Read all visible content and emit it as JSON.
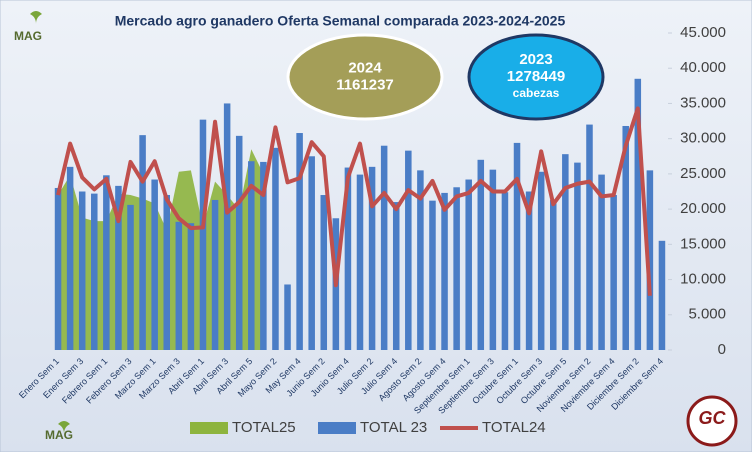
{
  "chart_data": {
    "type": "combo",
    "title": "Mercado agro ganadero Oferta Semanal comparada 2023-2024-2025",
    "categories": [
      "Enero Sem 1",
      null,
      "Enero Sem 3",
      null,
      "Febrero Sem 1",
      null,
      "Febrero Sem 3",
      null,
      "Marzo Sem 1",
      null,
      "Marzo Sem 3",
      null,
      "Abril Sem 1",
      null,
      "Abril Sem 3",
      null,
      "Abril Sem 5",
      null,
      "Mayo Sem 2",
      null,
      "May Sem 4",
      null,
      "Junio Sem 2",
      null,
      "Junio Sem 4",
      null,
      "Julio Sem 2",
      null,
      "Julio Sem 4",
      null,
      "Agosto Sem 2",
      null,
      "Agosto Sem 4",
      null,
      "Septiembre Sem 1",
      null,
      "Septiembre Sem 3",
      null,
      "Octubre Sem 1",
      null,
      "Octubre Sem 3",
      null,
      "Octubre Sem 5",
      null,
      "Noviembre Sem 2",
      null,
      "Noviembre Sem 4",
      null,
      "Diciembre Sem 2",
      null,
      "Diciembre Sem 4"
    ],
    "series": [
      {
        "name": "TOTAL25",
        "type": "area",
        "color": "#8db43e",
        "values": [
          22000,
          24800,
          18800,
          18300,
          18300,
          22200,
          22000,
          21500,
          20800,
          17000,
          25300,
          25500,
          17500,
          23900,
          22000,
          19900,
          28500,
          25000,
          null,
          null,
          null,
          null,
          null,
          null,
          null,
          null,
          null,
          null,
          null,
          null,
          null,
          null,
          null,
          null,
          null,
          null,
          null,
          null,
          null,
          null,
          null,
          null,
          null,
          null,
          null,
          null,
          null,
          null,
          null,
          null,
          null
        ]
      },
      {
        "name": "TOTAL 23",
        "type": "bar",
        "color": "#4a7dc6",
        "values": [
          23000,
          26000,
          22500,
          22200,
          24800,
          23300,
          20600,
          30500,
          24200,
          22000,
          18200,
          18000,
          32700,
          21300,
          35000,
          30400,
          26800,
          26700,
          28700,
          9300,
          30800,
          27500,
          22000,
          18700,
          25900,
          24900,
          26000,
          29000,
          21000,
          28300,
          25500,
          21200,
          22300,
          23100,
          24200,
          27000,
          25600,
          22400,
          29400,
          22500,
          25300,
          21300,
          27800,
          26600,
          32000,
          24900,
          22000,
          31800,
          38500,
          25500,
          15500
        ]
      },
      {
        "name": "TOTAL24",
        "type": "line",
        "color": "#c0504d",
        "values": [
          22000,
          29300,
          24500,
          22800,
          24300,
          18300,
          26700,
          23900,
          26800,
          21400,
          18700,
          17300,
          17400,
          32400,
          19500,
          21000,
          23300,
          22000,
          31600,
          23800,
          24400,
          29500,
          27500,
          9200,
          24500,
          29300,
          20400,
          22300,
          20000,
          22700,
          21500,
          24000,
          19900,
          21800,
          22300,
          24000,
          22500,
          22500,
          24300,
          19400,
          28200,
          20700,
          23000,
          23600,
          23900,
          21800,
          22000,
          29000,
          34300,
          7700,
          null
        ]
      }
    ],
    "ylim": [
      0,
      45000
    ],
    "yticks": [
      0,
      {
        "value": 5000,
        "label": "5.000"
      },
      {
        "value": 10000,
        "label": "10.000"
      },
      {
        "value": 15000,
        "label": "15.000"
      },
      {
        "value": 20000,
        "label": "20.000"
      },
      {
        "value": 25000,
        "label": "25.000"
      },
      {
        "value": 30000,
        "label": "30.000"
      },
      {
        "value": 35000,
        "label": "35.000"
      },
      {
        "value": 40000,
        "label": "40.000"
      },
      {
        "value": 45000,
        "label": "45.000"
      }
    ],
    "legend": "bottom",
    "annotations": [
      {
        "lines": [
          "2024",
          "1161237"
        ]
      },
      {
        "lines": [
          "2023",
          "1278449",
          "cabezas"
        ]
      }
    ],
    "logos": [
      "MAG",
      "MAG",
      "GC"
    ]
  }
}
